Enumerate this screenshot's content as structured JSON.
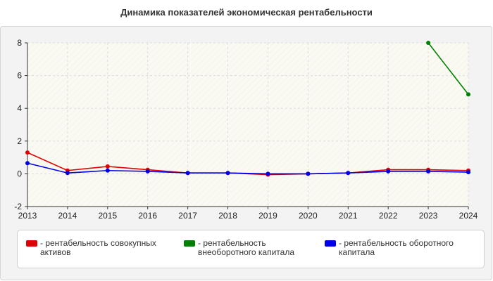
{
  "chart_data": {
    "type": "line",
    "title": "Динамика показателей экономическая рентабельности",
    "xlabel": "",
    "ylabel": "",
    "x": [
      "2013",
      "2014",
      "2015",
      "2016",
      "2017",
      "2018",
      "2019",
      "2020",
      "2021",
      "2022",
      "2023",
      "2024"
    ],
    "ylim": [
      -2,
      8
    ],
    "yticks": [
      "-2",
      "0",
      "2",
      "4",
      "6",
      "8"
    ],
    "grid": true,
    "legend_position": "bottom",
    "series": [
      {
        "name": "- рентабельность совокупных активов",
        "color": "#e00000",
        "values": [
          1.3,
          0.2,
          0.45,
          0.25,
          0.05,
          0.05,
          -0.05,
          0.0,
          0.05,
          0.25,
          0.25,
          0.2
        ]
      },
      {
        "name": "- рентабельность внеоборотного капитала",
        "color": "#008000",
        "values": [
          null,
          null,
          null,
          null,
          null,
          null,
          null,
          null,
          null,
          null,
          8.0,
          4.85
        ]
      },
      {
        "name": "- рентабельность оборотного капитала",
        "color": "#0000e6",
        "values": [
          0.65,
          0.05,
          0.2,
          0.15,
          0.05,
          0.05,
          0.0,
          0.0,
          0.05,
          0.15,
          0.15,
          0.1
        ]
      }
    ]
  }
}
